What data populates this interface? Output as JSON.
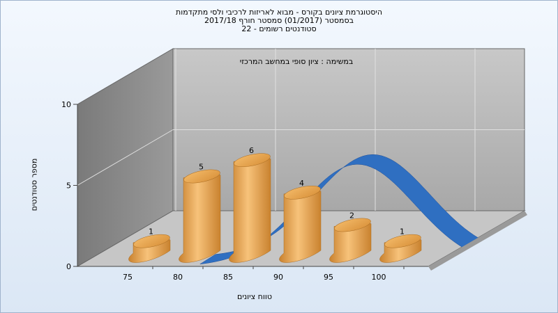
{
  "chart_data": {
    "type": "bar",
    "title_lines": [
      "היסטוגרמת ציונים בקורס - מבוא לאריזות לרכיבי ולסי מתקדמות",
      "בסמסטר  (01/2017)  סמסטר חורף 2017/18",
      "סטודנטים רשומים - 22"
    ],
    "subtitle": "במשימה : ציון סופי במחשב המרכזי",
    "xlabel": "טווח ציונים",
    "ylabel": "מספר סטודנטים",
    "categories": [
      "75",
      "80",
      "85",
      "90",
      "95",
      "100"
    ],
    "values": [
      1,
      5,
      6,
      4,
      2,
      1
    ],
    "yticks": [
      "0",
      "5",
      "10"
    ],
    "ylim": [
      0,
      10
    ],
    "curve": {
      "type": "normal-distribution",
      "color": "#2f6fc1"
    },
    "colors": {
      "bar": "#e9a64a",
      "back_wall": "#b7b7b7",
      "side_wall": "#8b8b8b",
      "floor": "#c9c9c9"
    }
  }
}
